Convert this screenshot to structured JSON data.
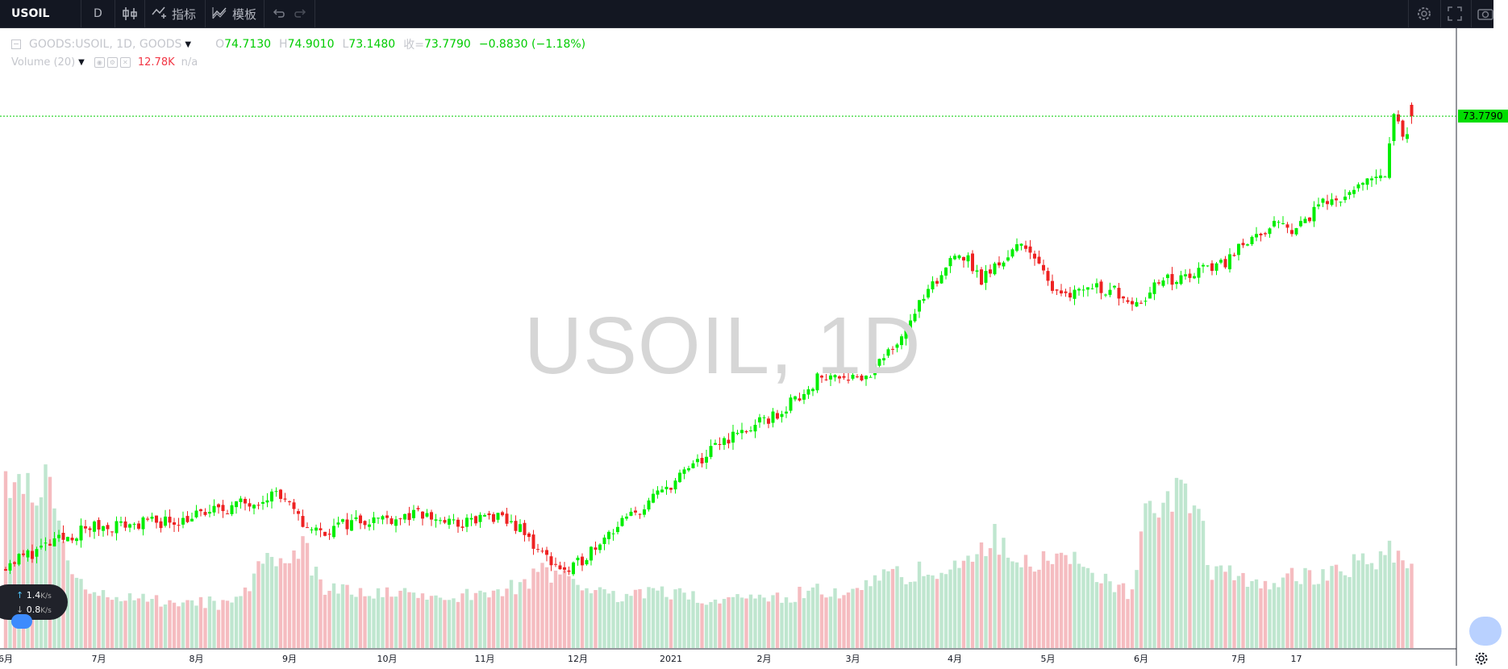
{
  "toolbar": {
    "symbol": "USOIL",
    "interval": "D",
    "indicators_label": "指标",
    "templates_label": "模板"
  },
  "legend": {
    "title": "GOODS:USOIL, 1D, GOODS",
    "o_label": "O",
    "o_value": "74.7130",
    "h_label": "H",
    "h_value": "74.9010",
    "l_label": "L",
    "l_value": "73.1480",
    "c_label": "收=",
    "c_value": "73.7790",
    "change": "−0.8830 (−1.18%)",
    "volume_title": "Volume (20)",
    "volume_value": "12.78K",
    "volume_ma": "n/a"
  },
  "watermark": "USOIL, 1D",
  "price_label": "73.7790",
  "net_widget": {
    "up": "1.4",
    "down": "0.8",
    "unit": "K/s"
  },
  "x_labels": [
    "6月",
    "7月",
    "8月",
    "9月",
    "10月",
    "11月",
    "12月",
    "2021",
    "2月",
    "3月",
    "4月",
    "5月",
    "6月",
    "7月",
    "17"
  ],
  "colors": {
    "up": "#00ee00",
    "down": "#ee2222",
    "vol_up": "#bfe6cf",
    "vol_down": "#f5bcc0",
    "price_line": "#00cc00"
  },
  "chart_data": {
    "type": "candlestick",
    "symbol": "USOIL",
    "interval": "1D",
    "period": "2020-06 to 2021-07",
    "close_path": [
      [
        1,
        37.0
      ],
      [
        20,
        40.0
      ],
      [
        40,
        40.6
      ],
      [
        55,
        42.0
      ],
      [
        62,
        42.9
      ],
      [
        68,
        40.3
      ],
      [
        72,
        39.6
      ],
      [
        80,
        40.6
      ],
      [
        95,
        41.0
      ],
      [
        103,
        40.2
      ],
      [
        110,
        40.9
      ],
      [
        116,
        40.2
      ],
      [
        122,
        37.8
      ],
      [
        128,
        36.2
      ],
      [
        136,
        39.4
      ],
      [
        144,
        41.4
      ],
      [
        150,
        43.3
      ],
      [
        158,
        45.6
      ],
      [
        163,
        47.2
      ],
      [
        170,
        48.3
      ],
      [
        176,
        49.5
      ],
      [
        184,
        52.2
      ],
      [
        190,
        52.6
      ],
      [
        195,
        52.3
      ],
      [
        200,
        54.2
      ],
      [
        206,
        57.8
      ],
      [
        212,
        60.6
      ],
      [
        215,
        62.8
      ],
      [
        218,
        61.9
      ],
      [
        221,
        60.3
      ],
      [
        226,
        62.1
      ],
      [
        231,
        63.4
      ],
      [
        236,
        60.0
      ],
      [
        241,
        59.3
      ],
      [
        246,
        59.9
      ],
      [
        252,
        59.3
      ],
      [
        256,
        58.5
      ],
      [
        261,
        60.1
      ],
      [
        266,
        60.4
      ],
      [
        271,
        61.2
      ],
      [
        277,
        62.0
      ],
      [
        279,
        63.6
      ],
      [
        285,
        63.6
      ],
      [
        287,
        65.1
      ],
      [
        290,
        64.4
      ],
      [
        295,
        65.4
      ],
      [
        298,
        67.2
      ],
      [
        302,
        66.7
      ],
      [
        305,
        67.5
      ],
      [
        309,
        68.8
      ],
      [
        312,
        69.3
      ],
      [
        314,
        73.7
      ],
      [
        317,
        71.9
      ],
      [
        318,
        73.7
      ]
    ],
    "volume_path": [
      [
        1,
        0.9
      ],
      [
        10,
        0.95
      ],
      [
        15,
        0.45
      ],
      [
        20,
        0.3
      ],
      [
        30,
        0.28
      ],
      [
        40,
        0.27
      ],
      [
        50,
        0.25
      ],
      [
        55,
        0.33
      ],
      [
        60,
        0.5
      ],
      [
        65,
        0.48
      ],
      [
        68,
        0.58
      ],
      [
        72,
        0.36
      ],
      [
        80,
        0.3
      ],
      [
        95,
        0.3
      ],
      [
        110,
        0.3
      ],
      [
        118,
        0.37
      ],
      [
        122,
        0.42
      ],
      [
        128,
        0.39
      ],
      [
        136,
        0.3
      ],
      [
        150,
        0.32
      ],
      [
        158,
        0.28
      ],
      [
        163,
        0.26
      ],
      [
        170,
        0.28
      ],
      [
        178,
        0.3
      ],
      [
        185,
        0.32
      ],
      [
        190,
        0.3
      ],
      [
        196,
        0.4
      ],
      [
        203,
        0.42
      ],
      [
        212,
        0.45
      ],
      [
        220,
        0.5
      ],
      [
        224,
        0.62
      ],
      [
        230,
        0.48
      ],
      [
        238,
        0.52
      ],
      [
        245,
        0.45
      ],
      [
        250,
        0.35
      ],
      [
        255,
        0.3
      ],
      [
        258,
        0.72
      ],
      [
        266,
        0.88
      ],
      [
        270,
        0.8
      ],
      [
        273,
        0.42
      ],
      [
        280,
        0.4
      ],
      [
        288,
        0.38
      ],
      [
        295,
        0.42
      ],
      [
        300,
        0.42
      ],
      [
        305,
        0.48
      ],
      [
        310,
        0.5
      ],
      [
        314,
        0.55
      ],
      [
        318,
        0.42
      ]
    ],
    "x_ticks": [
      {
        "label": "6月",
        "index": 1
      },
      {
        "label": "7月",
        "index": 22
      },
      {
        "label": "8月",
        "index": 44
      },
      {
        "label": "9月",
        "index": 65
      },
      {
        "label": "10月",
        "index": 87
      },
      {
        "label": "11月",
        "index": 109
      },
      {
        "label": "12月",
        "index": 130
      },
      {
        "label": "2021",
        "index": 151
      },
      {
        "label": "2月",
        "index": 172
      },
      {
        "label": "3月",
        "index": 192
      },
      {
        "label": "4月",
        "index": 215
      },
      {
        "label": "5月",
        "index": 236
      },
      {
        "label": "6月",
        "index": 257
      },
      {
        "label": "7月",
        "index": 279
      },
      {
        "label": "17",
        "index": 292
      }
    ],
    "last": {
      "open": 74.713,
      "high": 74.901,
      "low": 73.148,
      "close": 73.779,
      "change": -0.883,
      "change_pct": -1.18
    },
    "last_volume": 12.78,
    "volume_unit": "K",
    "y_range": [
      34.0,
      76.7
    ],
    "grid": false
  }
}
